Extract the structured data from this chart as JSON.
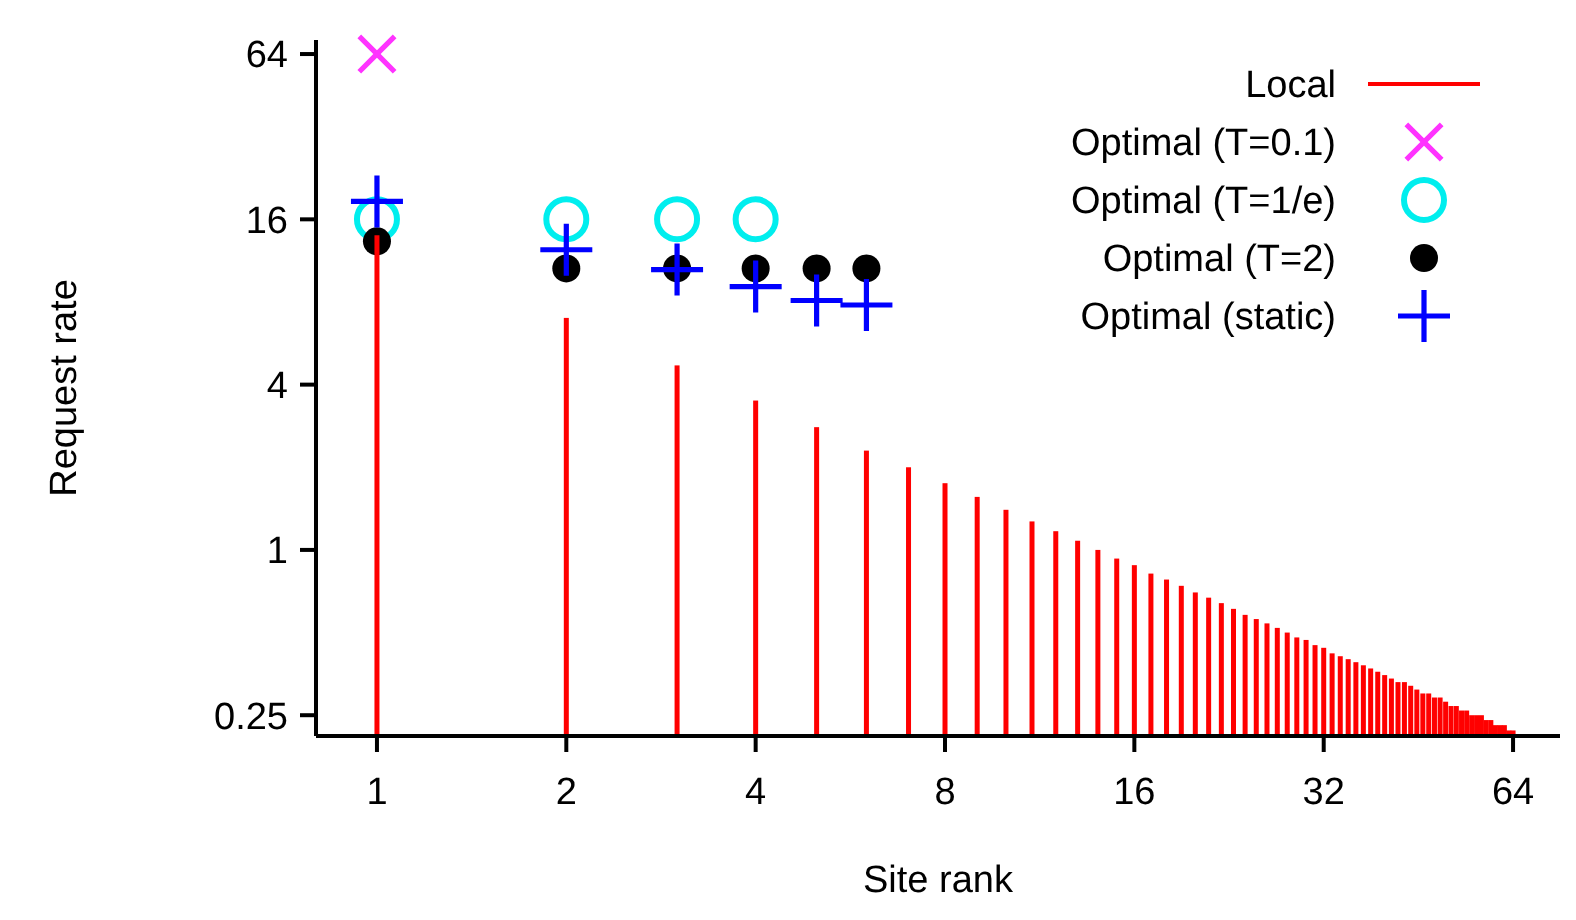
{
  "chart_data": {
    "type": "scatter",
    "xlabel": "Site rank",
    "ylabel": "Request rate",
    "log": "xy",
    "grid": false,
    "legend": "top right",
    "xlim": [
      0.8,
      76
    ],
    "xticks": [
      1,
      2,
      4,
      8,
      16,
      32,
      64
    ],
    "ylim": [
      0.21,
      72
    ],
    "yticks": [
      0.25,
      1,
      4,
      16,
      64
    ],
    "series": [
      {
        "name": "Local",
        "type": "bar",
        "color": "#ff0000",
        "x": [
          1,
          2,
          3,
          4,
          5,
          6,
          7,
          8,
          9,
          10,
          11,
          12,
          13,
          14,
          15,
          16,
          17,
          18,
          19,
          20,
          21,
          22,
          23,
          24,
          25,
          26,
          27,
          28,
          29,
          30,
          31,
          32,
          33,
          34,
          35,
          36,
          37,
          38,
          39,
          40,
          41,
          42,
          43,
          44,
          45,
          46,
          47,
          48,
          49,
          50,
          51,
          52,
          53,
          54,
          55,
          56,
          57,
          58,
          59,
          60,
          61,
          62,
          63,
          64
        ],
        "values": [
          14,
          7,
          4.7,
          3.5,
          2.8,
          2.3,
          2,
          1.75,
          1.56,
          1.4,
          1.27,
          1.17,
          1.08,
          1,
          0.93,
          0.88,
          0.82,
          0.78,
          0.74,
          0.7,
          0.67,
          0.64,
          0.61,
          0.58,
          0.56,
          0.54,
          0.52,
          0.5,
          0.48,
          0.47,
          0.45,
          0.44,
          0.42,
          0.41,
          0.4,
          0.39,
          0.38,
          0.37,
          0.36,
          0.35,
          0.34,
          0.33,
          0.33,
          0.32,
          0.31,
          0.3,
          0.3,
          0.29,
          0.29,
          0.28,
          0.27,
          0.27,
          0.26,
          0.26,
          0.25,
          0.25,
          0.25,
          0.24,
          0.24,
          0.23,
          0.23,
          0.23,
          0.22,
          0.22
        ]
      },
      {
        "name": "Optimal (T=0.1)",
        "marker": "cross",
        "color": "#ff33ff",
        "x": [
          1
        ],
        "values": [
          64
        ]
      },
      {
        "name": "Optimal (T=1/e)",
        "marker": "circle",
        "color": "#00eeee",
        "x": [
          1,
          2,
          3,
          4
        ],
        "values": [
          16,
          16,
          16,
          16
        ]
      },
      {
        "name": "Optimal (T=2)",
        "marker": "circle",
        "color": "#000000",
        "x": [
          1,
          2,
          3,
          4,
          5,
          6
        ],
        "values": [
          13.3,
          10.6,
          10.6,
          10.6,
          10.6,
          10.6
        ]
      },
      {
        "name": "Optimal (static)",
        "marker": "cross",
        "color": "#0000ff",
        "x": [
          1,
          2,
          3,
          4,
          5,
          6
        ],
        "values": [
          18.6,
          12.4,
          10.5,
          9.1,
          8.1,
          7.8
        ]
      }
    ]
  }
}
